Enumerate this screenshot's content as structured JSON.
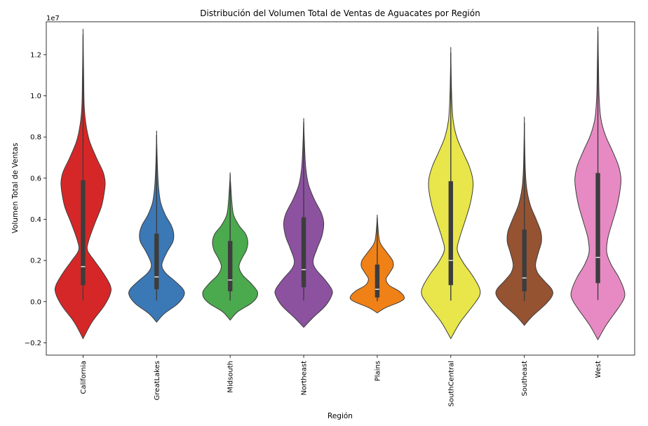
{
  "chart_data": {
    "type": "violin",
    "title": "Distribución del Volumen Total de Ventas de Aguacates por Región",
    "xlabel": "Región",
    "ylabel": "Volumen Total de Ventas",
    "y_offset_label": "1e7",
    "y_scale": 10000000,
    "ylim": [
      -0.26,
      1.36
    ],
    "yticks": [
      -0.2,
      0.0,
      0.2,
      0.4,
      0.6,
      0.8,
      1.0,
      1.2
    ],
    "ytick_labels": [
      "−0.2",
      "0.0",
      "0.2",
      "0.4",
      "0.6",
      "0.8",
      "1.0",
      "1.2"
    ],
    "grid": false,
    "legend": "none",
    "categories": [
      "California",
      "GreatLakes",
      "Midsouth",
      "Northeast",
      "Plains",
      "SouthCentral",
      "Southeast",
      "West"
    ],
    "series": [
      {
        "region": "California",
        "color": "#d62728",
        "min": 0.005,
        "q1": 0.08,
        "median": 0.17,
        "q3": 0.59,
        "max": 1.3,
        "kde_min": -0.18,
        "kde_max": 1.3,
        "density": [
          [
            -0.18,
            0.0
          ],
          [
            -0.1,
            0.3
          ],
          [
            -0.02,
            0.72
          ],
          [
            0.04,
            0.93
          ],
          [
            0.08,
            0.92
          ],
          [
            0.14,
            0.68
          ],
          [
            0.2,
            0.38
          ],
          [
            0.25,
            0.15
          ],
          [
            0.3,
            0.2
          ],
          [
            0.38,
            0.4
          ],
          [
            0.46,
            0.62
          ],
          [
            0.53,
            0.72
          ],
          [
            0.58,
            0.75
          ],
          [
            0.63,
            0.68
          ],
          [
            0.7,
            0.45
          ],
          [
            0.78,
            0.22
          ],
          [
            0.86,
            0.1
          ],
          [
            0.95,
            0.04
          ],
          [
            1.1,
            0.02
          ],
          [
            1.3,
            0.0
          ]
        ]
      },
      {
        "region": "GreatLakes",
        "color": "#3b78b6",
        "min": 0.006,
        "q1": 0.06,
        "median": 0.12,
        "q3": 0.33,
        "max": 0.81,
        "kde_min": -0.1,
        "kde_max": 0.81,
        "density": [
          [
            -0.1,
            0.0
          ],
          [
            -0.06,
            0.25
          ],
          [
            -0.01,
            0.72
          ],
          [
            0.03,
            0.93
          ],
          [
            0.06,
            0.9
          ],
          [
            0.1,
            0.62
          ],
          [
            0.14,
            0.3
          ],
          [
            0.18,
            0.18
          ],
          [
            0.24,
            0.35
          ],
          [
            0.29,
            0.55
          ],
          [
            0.33,
            0.58
          ],
          [
            0.37,
            0.5
          ],
          [
            0.42,
            0.3
          ],
          [
            0.48,
            0.14
          ],
          [
            0.55,
            0.07
          ],
          [
            0.65,
            0.03
          ],
          [
            0.81,
            0.0
          ]
        ]
      },
      {
        "region": "Midsouth",
        "color": "#4ba94e",
        "min": 0.005,
        "q1": 0.05,
        "median": 0.105,
        "q3": 0.295,
        "max": 0.615,
        "kde_min": -0.09,
        "kde_max": 0.615,
        "density": [
          [
            -0.09,
            0.0
          ],
          [
            -0.05,
            0.25
          ],
          [
            -0.01,
            0.7
          ],
          [
            0.02,
            0.9
          ],
          [
            0.05,
            0.92
          ],
          [
            0.09,
            0.7
          ],
          [
            0.13,
            0.42
          ],
          [
            0.17,
            0.3
          ],
          [
            0.21,
            0.4
          ],
          [
            0.25,
            0.55
          ],
          [
            0.29,
            0.6
          ],
          [
            0.33,
            0.52
          ],
          [
            0.37,
            0.3
          ],
          [
            0.42,
            0.12
          ],
          [
            0.48,
            0.06
          ],
          [
            0.61,
            0.0
          ]
        ]
      },
      {
        "region": "Northeast",
        "color": "#8c52a0",
        "min": 0.005,
        "q1": 0.07,
        "median": 0.155,
        "q3": 0.41,
        "max": 0.875,
        "kde_min": -0.125,
        "kde_max": 0.875,
        "density": [
          [
            -0.125,
            0.0
          ],
          [
            -0.08,
            0.3
          ],
          [
            -0.02,
            0.74
          ],
          [
            0.03,
            0.95
          ],
          [
            0.06,
            0.95
          ],
          [
            0.11,
            0.7
          ],
          [
            0.16,
            0.4
          ],
          [
            0.2,
            0.32
          ],
          [
            0.26,
            0.46
          ],
          [
            0.32,
            0.62
          ],
          [
            0.38,
            0.68
          ],
          [
            0.43,
            0.6
          ],
          [
            0.5,
            0.35
          ],
          [
            0.57,
            0.16
          ],
          [
            0.65,
            0.07
          ],
          [
            0.75,
            0.03
          ],
          [
            0.875,
            0.0
          ]
        ]
      },
      {
        "region": "Plains",
        "color": "#ef8117",
        "min": 0.002,
        "q1": 0.02,
        "median": 0.06,
        "q3": 0.18,
        "max": 0.41,
        "kde_min": -0.055,
        "kde_max": 0.41,
        "density": [
          [
            -0.055,
            0.0
          ],
          [
            -0.03,
            0.28
          ],
          [
            0.0,
            0.78
          ],
          [
            0.02,
            0.92
          ],
          [
            0.05,
            0.75
          ],
          [
            0.08,
            0.4
          ],
          [
            0.11,
            0.3
          ],
          [
            0.14,
            0.42
          ],
          [
            0.17,
            0.54
          ],
          [
            0.2,
            0.52
          ],
          [
            0.24,
            0.32
          ],
          [
            0.28,
            0.12
          ],
          [
            0.32,
            0.05
          ],
          [
            0.41,
            0.0
          ]
        ]
      },
      {
        "region": "SouthCentral",
        "color": "#e8e64a",
        "min": 0.005,
        "q1": 0.08,
        "median": 0.2,
        "q3": 0.585,
        "max": 1.21,
        "kde_min": -0.18,
        "kde_max": 1.21,
        "density": [
          [
            -0.18,
            0.0
          ],
          [
            -0.1,
            0.32
          ],
          [
            -0.02,
            0.75
          ],
          [
            0.03,
            0.98
          ],
          [
            0.07,
            0.96
          ],
          [
            0.13,
            0.72
          ],
          [
            0.19,
            0.42
          ],
          [
            0.25,
            0.22
          ],
          [
            0.31,
            0.3
          ],
          [
            0.39,
            0.48
          ],
          [
            0.47,
            0.65
          ],
          [
            0.55,
            0.75
          ],
          [
            0.6,
            0.74
          ],
          [
            0.66,
            0.62
          ],
          [
            0.73,
            0.4
          ],
          [
            0.8,
            0.2
          ],
          [
            0.88,
            0.08
          ],
          [
            1.0,
            0.03
          ],
          [
            1.21,
            0.0
          ]
        ]
      },
      {
        "region": "Southeast",
        "color": "#955332",
        "min": 0.003,
        "q1": 0.05,
        "median": 0.115,
        "q3": 0.35,
        "max": 0.87,
        "kde_min": -0.115,
        "kde_max": 0.87,
        "density": [
          [
            -0.115,
            0.0
          ],
          [
            -0.07,
            0.28
          ],
          [
            -0.01,
            0.74
          ],
          [
            0.03,
            0.95
          ],
          [
            0.06,
            0.93
          ],
          [
            0.1,
            0.68
          ],
          [
            0.14,
            0.45
          ],
          [
            0.18,
            0.38
          ],
          [
            0.24,
            0.48
          ],
          [
            0.29,
            0.58
          ],
          [
            0.34,
            0.56
          ],
          [
            0.4,
            0.4
          ],
          [
            0.47,
            0.2
          ],
          [
            0.55,
            0.08
          ],
          [
            0.65,
            0.03
          ],
          [
            0.87,
            0.0
          ]
        ]
      },
      {
        "region": "West",
        "color": "#e78ac3",
        "min": 0.008,
        "q1": 0.09,
        "median": 0.215,
        "q3": 0.625,
        "max": 1.315,
        "kde_min": -0.185,
        "kde_max": 1.315,
        "density": [
          [
            -0.185,
            0.0
          ],
          [
            -0.11,
            0.3
          ],
          [
            -0.03,
            0.7
          ],
          [
            0.02,
            0.9
          ],
          [
            0.06,
            0.88
          ],
          [
            0.12,
            0.7
          ],
          [
            0.18,
            0.45
          ],
          [
            0.24,
            0.3
          ],
          [
            0.31,
            0.34
          ],
          [
            0.39,
            0.5
          ],
          [
            0.47,
            0.66
          ],
          [
            0.55,
            0.76
          ],
          [
            0.6,
            0.78
          ],
          [
            0.66,
            0.7
          ],
          [
            0.73,
            0.5
          ],
          [
            0.81,
            0.25
          ],
          [
            0.89,
            0.1
          ],
          [
            1.0,
            0.04
          ],
          [
            1.15,
            0.02
          ],
          [
            1.315,
            0.0
          ]
        ]
      }
    ]
  }
}
